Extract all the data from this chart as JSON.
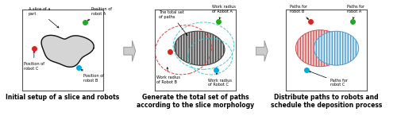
{
  "panel1_title": "Initial setup of a slice and robots",
  "panel2_title": "Generate the total set of paths\naccording to the slice morphology",
  "panel3_title": "Distribute paths to robots and\nschedule the deposition process",
  "robot_a_color": "#22aa22",
  "robot_b_color": "#00aadd",
  "robot_c_color": "#dd2222",
  "bg_color": "#ffffff",
  "title_fontsize": 5.5,
  "label_fontsize": 3.6
}
